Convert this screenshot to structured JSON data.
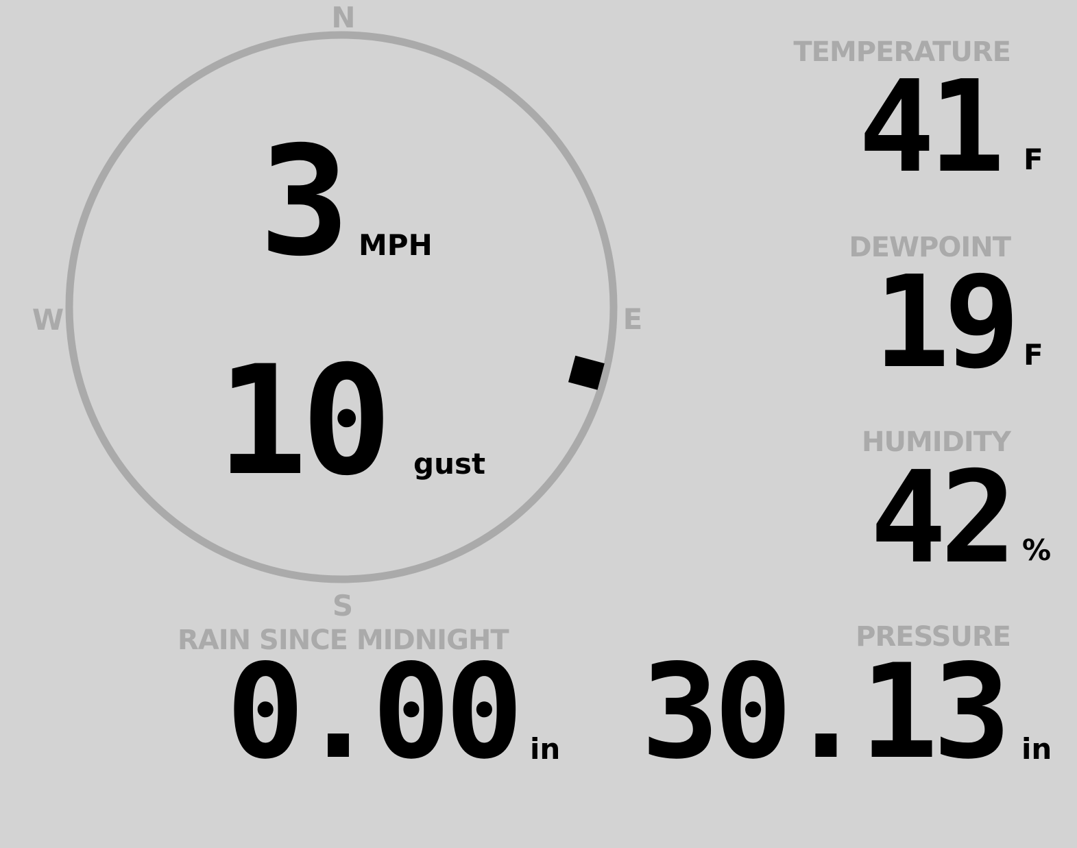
{
  "wind": {
    "speed": "3",
    "speed_unit": "MPH",
    "gust": "10",
    "gust_unit": "gust",
    "direction_degrees": 105,
    "compass": {
      "n": "N",
      "e": "E",
      "s": "S",
      "w": "W"
    }
  },
  "temperature": {
    "label": "TEMPERATURE",
    "value": "41",
    "unit": "F"
  },
  "dewpoint": {
    "label": "DEWPOINT",
    "value": "19",
    "unit": "F"
  },
  "humidity": {
    "label": "HUMIDITY",
    "value": "42",
    "unit": "%"
  },
  "rain": {
    "label": "RAIN SINCE MIDNIGHT",
    "value": "0.00",
    "unit": "in"
  },
  "pressure": {
    "label": "PRESSURE",
    "value": "30.13",
    "unit": "in"
  },
  "colors": {
    "background": "#d3d3d3",
    "label": "#aaaaaa",
    "value": "#000000",
    "ring": "#aaaaaa"
  }
}
